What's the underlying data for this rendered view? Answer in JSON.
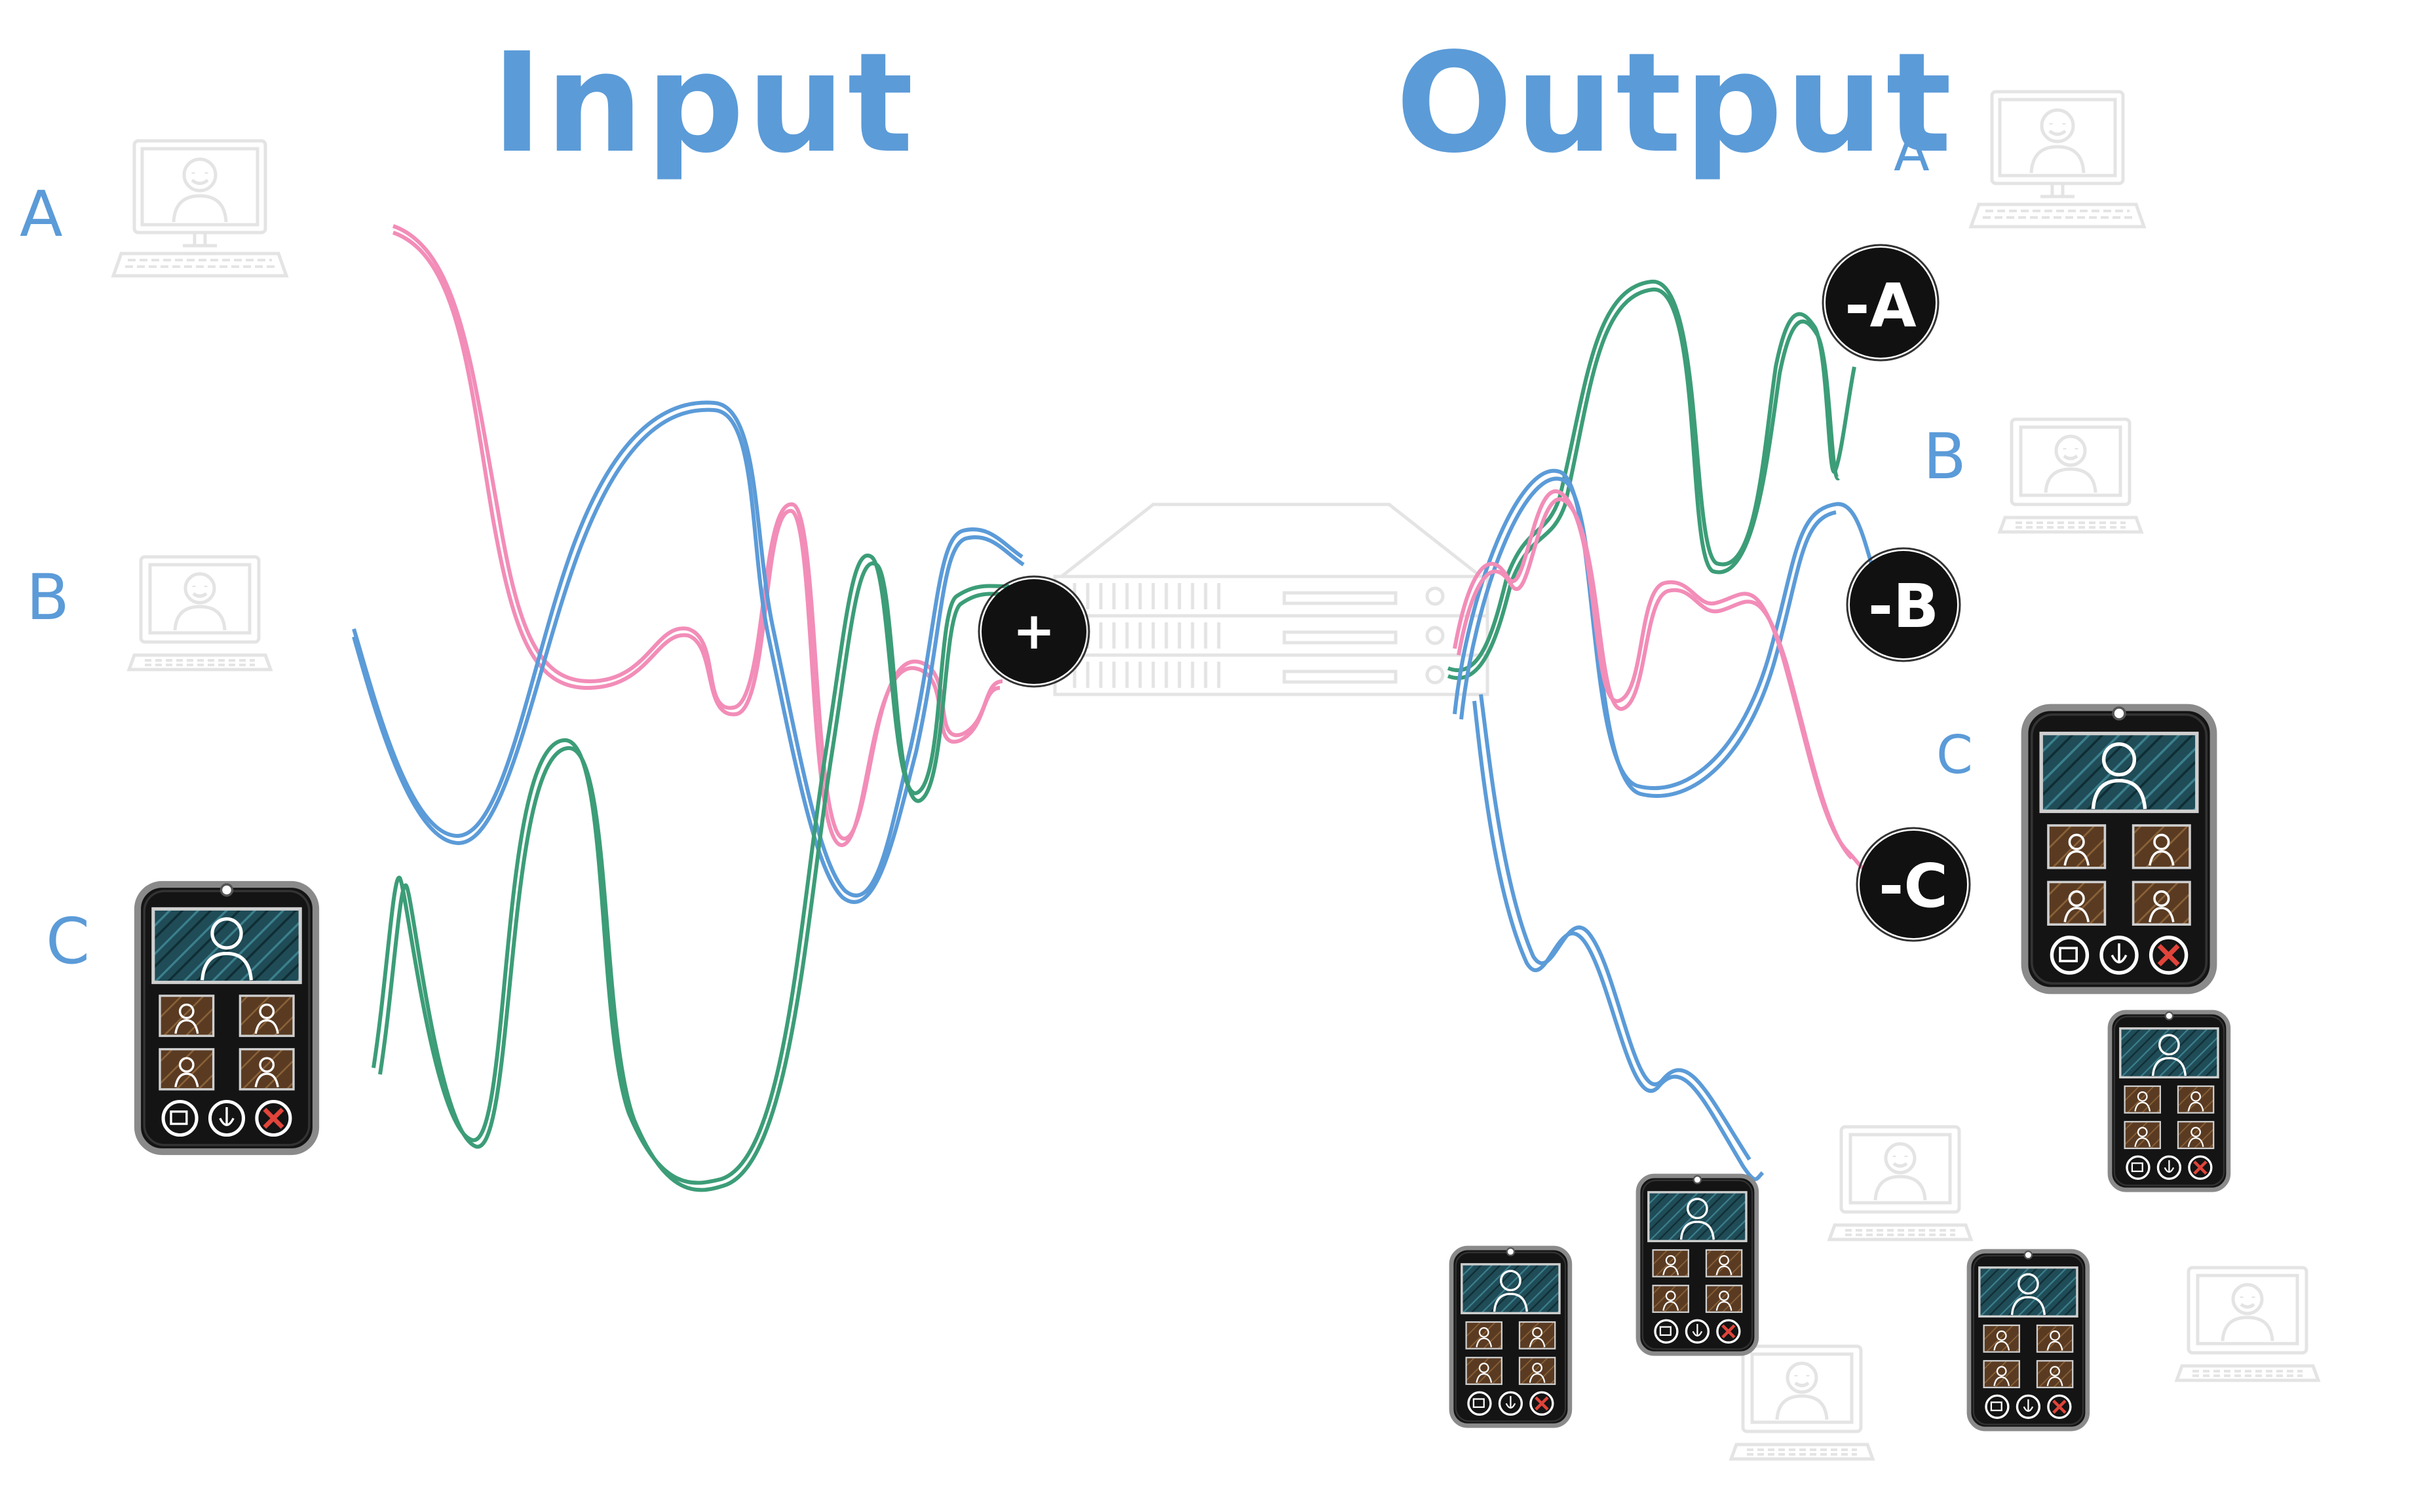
{
  "titles": {
    "input": "Input",
    "output": "Output"
  },
  "input_labels": [
    "A",
    "B",
    "C"
  ],
  "output_labels": [
    "A",
    "B",
    "C"
  ],
  "mix_node": "+",
  "minus_nodes": [
    "-A",
    "-B",
    "-C"
  ],
  "colors": {
    "label": "#5b9bd8",
    "participant_a": "#f28db8",
    "participant_b": "#5b9bd8",
    "participant_c": "#3c9d78",
    "node": "#111111",
    "ghost": "#e4e4e4",
    "phone_screen": "#1f4c57",
    "phone_tile": "#6b4a2c"
  },
  "icons": [
    "laptop-icon",
    "phone-icon",
    "server-rack-icon",
    "mixer-node-icon"
  ]
}
